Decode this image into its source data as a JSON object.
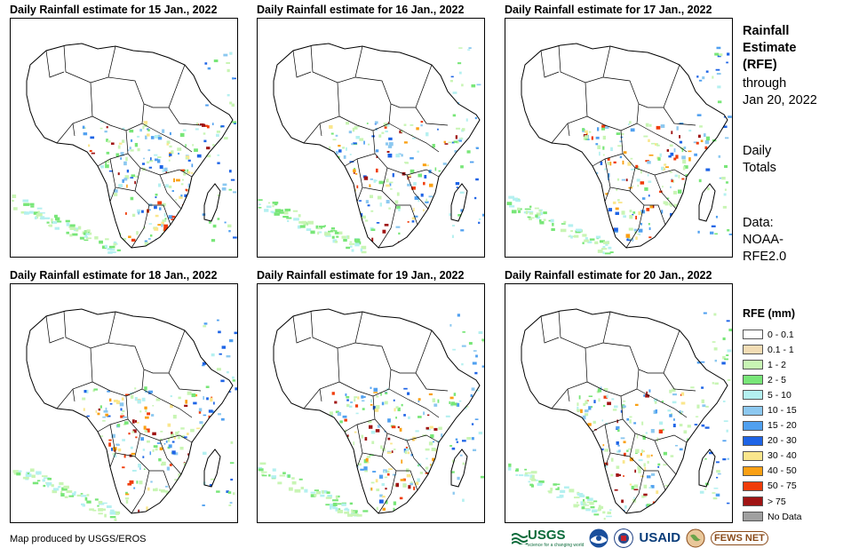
{
  "panels": [
    {
      "title": "Daily Rainfall estimate for 15 Jan., 2022"
    },
    {
      "title": "Daily Rainfall estimate for 16 Jan., 2022"
    },
    {
      "title": "Daily Rainfall estimate for 17 Jan., 2022"
    },
    {
      "title": "Daily Rainfall estimate for 18 Jan., 2022"
    },
    {
      "title": "Daily Rainfall estimate for 19 Jan., 2022"
    },
    {
      "title": "Daily Rainfall estimate for 20 Jan., 2022"
    }
  ],
  "side": {
    "title_lines": [
      "Rainfall",
      "Estimate",
      "(RFE)"
    ],
    "through_lines": [
      "through",
      "Jan 20, 2022"
    ],
    "totals_lines": [
      "Daily",
      "Totals"
    ],
    "data_lines": [
      "Data:",
      "NOAA-",
      "RFE2.0"
    ]
  },
  "legend": {
    "title": "RFE (mm)",
    "items": [
      {
        "label": "0 - 0.1",
        "color": "#ffffff"
      },
      {
        "label": "0.1 - 1",
        "color": "#f2dcb4"
      },
      {
        "label": "1 - 2",
        "color": "#c8f5b4"
      },
      {
        "label": "2 - 5",
        "color": "#78e678"
      },
      {
        "label": "5 - 10",
        "color": "#b4f0f0"
      },
      {
        "label": "10 - 15",
        "color": "#8cc8f0"
      },
      {
        "label": "15 - 20",
        "color": "#50a0f0"
      },
      {
        "label": "20 - 30",
        "color": "#1e64e6"
      },
      {
        "label": "30 - 40",
        "color": "#fae68c"
      },
      {
        "label": "40 - 50",
        "color": "#faa014"
      },
      {
        "label": "50 - 75",
        "color": "#f03c0a"
      },
      {
        "label": "> 75",
        "color": "#a01414"
      },
      {
        "label": "No Data",
        "color": "#a0a0a0"
      }
    ]
  },
  "footer": {
    "credit": "Map produced by USGS/EROS",
    "logos": {
      "usgs": "USGS",
      "usgs_tagline": "science for a changing world",
      "usaid": "USAID",
      "fews": "FEWS NET"
    }
  }
}
